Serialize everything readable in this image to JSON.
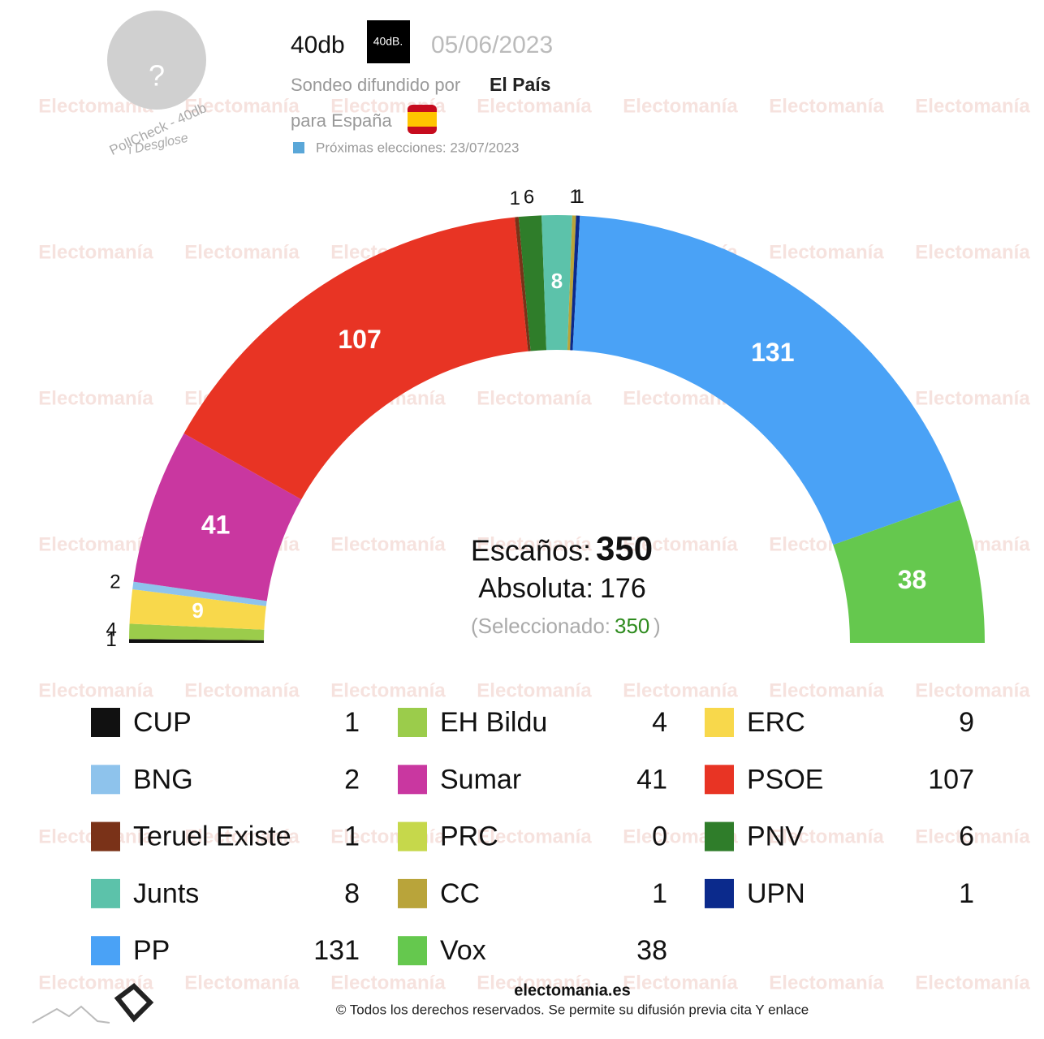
{
  "header": {
    "pollster": "40db",
    "pollster_logo": "40dB.",
    "date": "05/06/2023",
    "published_by_label": "Sondeo difundido por",
    "published_by": "El País",
    "region": "para España",
    "next_election": "Próximas elecciones: 23/07/2023",
    "avatar": "?",
    "pollcheck": "PollCheck - 40db",
    "breakdown": "i Desglose"
  },
  "chart_data": {
    "type": "parliament",
    "series": [
      {
        "name": "CUP",
        "color": "#111111",
        "value": 1
      },
      {
        "name": "BNG",
        "color": "#8ec3ec",
        "value": 2
      },
      {
        "name": "Teruel Existe",
        "color": "#7a3218",
        "value": 1
      },
      {
        "name": "Junts",
        "color": "#5cc2aa",
        "value": 8
      },
      {
        "name": "PP",
        "color": "#4aa2f6",
        "value": 131
      },
      {
        "name": "EH Bildu",
        "color": "#9bcc4b",
        "value": 4
      },
      {
        "name": "Sumar",
        "color": "#c937a0",
        "value": 41
      },
      {
        "name": "PRC",
        "color": "#c6d84b",
        "value": 0
      },
      {
        "name": "CC",
        "color": "#b9a43a",
        "value": 1
      },
      {
        "name": "Vox",
        "color": "#65c84e",
        "value": 38
      },
      {
        "name": "ERC",
        "color": "#f8d84b",
        "value": 9
      },
      {
        "name": "PSOE",
        "color": "#e83424",
        "value": 107
      },
      {
        "name": "PNV",
        "color": "#2f7d2a",
        "value": 6
      },
      {
        "name": "UPN",
        "color": "#0b2a8c",
        "value": 1
      }
    ],
    "seats_label": "Escaños:",
    "seats": 350,
    "majority_label": "Absoluta:",
    "majority": 176,
    "selected_label": "(Seleccionado:",
    "selected": 350,
    "selected_close": ")"
  },
  "footer": {
    "site": "electomania.es",
    "copyright": "© Todos los derechos reservados. Se permite su difusión previa cita Y enlace",
    "watermark": "Electomanía"
  }
}
